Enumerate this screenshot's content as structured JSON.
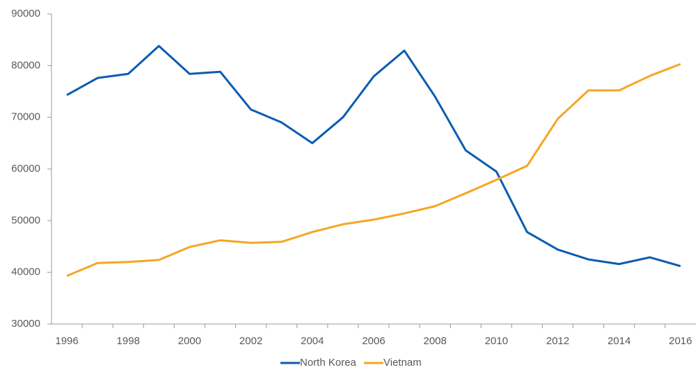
{
  "chart_data": {
    "type": "line",
    "categories": [
      "1996",
      null,
      "1998",
      null,
      "2000",
      null,
      "2002",
      null,
      "2004",
      null,
      "2006",
      null,
      "2008",
      null,
      "2010",
      null,
      "2012",
      null,
      "2014",
      null,
      "2016"
    ],
    "series": [
      {
        "name": "North Korea",
        "color": "#0a5cb0",
        "values": [
          74300,
          77600,
          78400,
          83800,
          78400,
          78800,
          71500,
          69000,
          65000,
          70000,
          77900,
          82900,
          74000,
          63600,
          59500,
          47800,
          44400,
          42500,
          41600,
          42900,
          41200
        ]
      },
      {
        "name": "Vietnam",
        "color": "#f5a623",
        "values": [
          39300,
          41800,
          42000,
          42400,
          44900,
          46200,
          45700,
          45900,
          47800,
          49300,
          50200,
          51400,
          52800,
          55300,
          57900,
          60600,
          69700,
          75200,
          75200,
          78000,
          80300
        ]
      }
    ],
    "ylim": [
      30000,
      90000
    ],
    "yticks": [
      30000,
      40000,
      50000,
      60000,
      70000,
      80000,
      90000
    ],
    "grid": false,
    "legend": "bottom"
  }
}
